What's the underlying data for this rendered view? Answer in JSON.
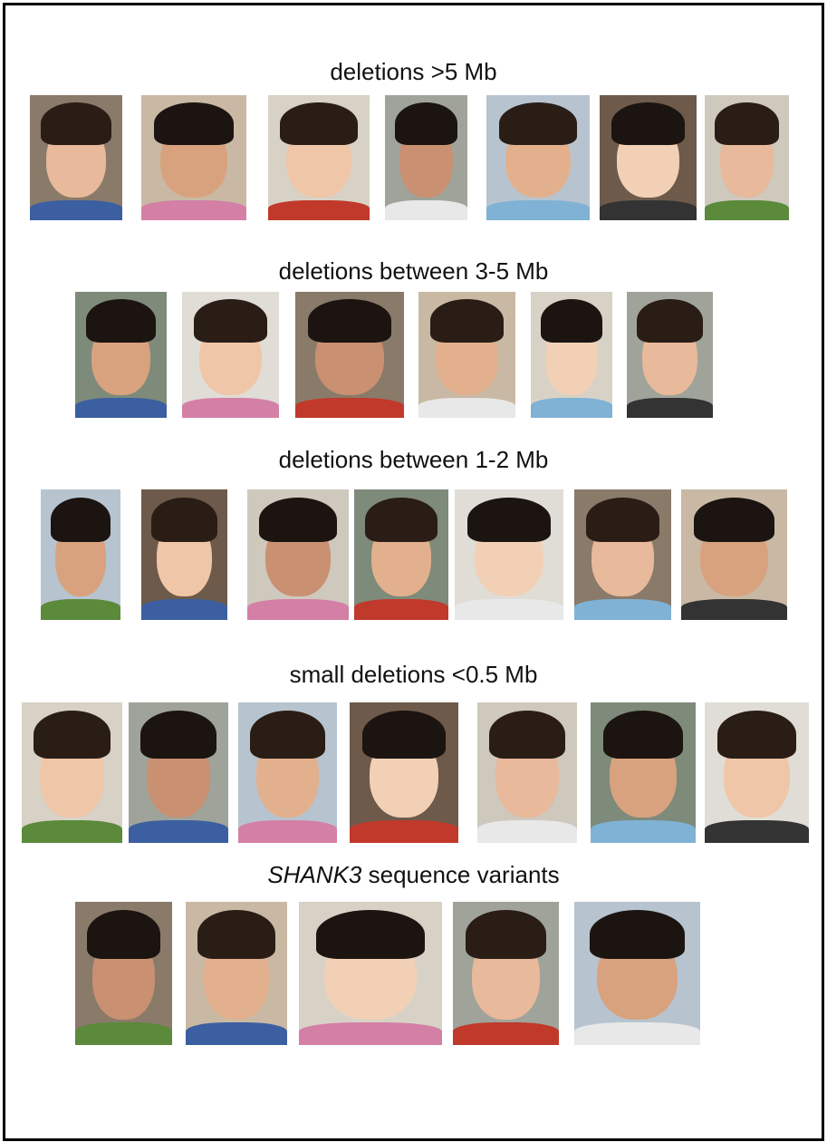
{
  "figure": {
    "sections": [
      {
        "title": "deletions >5 Mb",
        "photo_count": 7
      },
      {
        "title": "deletions between 3-5 Mb",
        "photo_count": 6
      },
      {
        "title": "deletions between 1-2 Mb",
        "photo_count": 7
      },
      {
        "title": "small deletions <0.5 Mb",
        "photo_count": 7
      },
      {
        "title_italic": "SHANK3",
        "title_rest": " sequence variants",
        "photo_count": 5
      }
    ]
  }
}
